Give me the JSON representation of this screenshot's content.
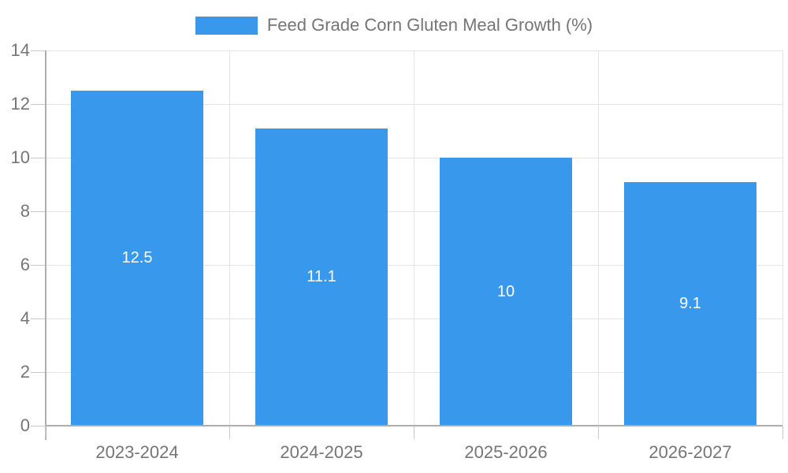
{
  "chart_data": {
    "type": "bar",
    "title": "",
    "legend": "Feed Grade Corn Gluten Meal Growth (%)",
    "legend_position": "top-center",
    "categories": [
      "2023-2024",
      "2024-2025",
      "2025-2026",
      "2026-2027"
    ],
    "values": [
      12.5,
      11.1,
      10,
      9.1
    ],
    "value_labels": [
      "12.5",
      "11.1",
      "10",
      "9.1"
    ],
    "xlabel": "",
    "ylabel": "",
    "ylim": [
      0,
      14
    ],
    "ytick_step": 2,
    "ytick_labels": [
      "0",
      "2",
      "4",
      "6",
      "8",
      "10",
      "12",
      "14"
    ],
    "grid": "both",
    "bar_width_frac": 0.72,
    "colors": {
      "bar": "#3899EC",
      "bar_label": "#ffffff",
      "axis_line": "#adadad",
      "gridline": "#e3e3e3",
      "tick": "#c9c9c9",
      "text": "#757575",
      "background": "#ffffff"
    }
  }
}
